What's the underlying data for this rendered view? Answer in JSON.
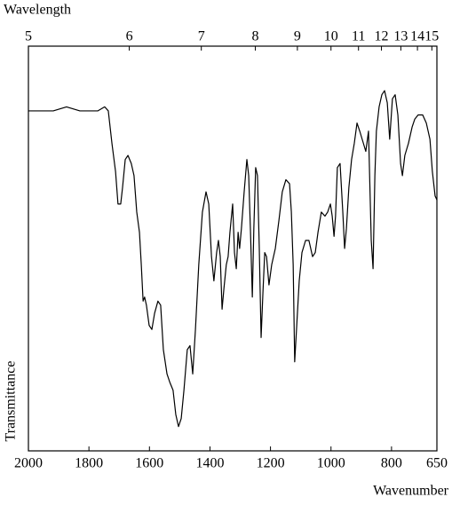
{
  "chart_data": {
    "type": "line",
    "x2label": "Wavelength",
    "xlabel": "Wavenumber",
    "ylabel": "Transmittance",
    "xlim": [
      2000,
      650
    ],
    "ylim": [
      0,
      100
    ],
    "xticks": [
      2000,
      1800,
      1600,
      1400,
      1200,
      1000,
      800,
      650
    ],
    "x2ticks": [
      {
        "value": 2000,
        "label": "5"
      },
      {
        "value": 1666.7,
        "label": "6"
      },
      {
        "value": 1428.6,
        "label": "7"
      },
      {
        "value": 1250,
        "label": "8"
      },
      {
        "value": 1111.1,
        "label": "9"
      },
      {
        "value": 1000,
        "label": "10"
      },
      {
        "value": 909.1,
        "label": "11"
      },
      {
        "value": 833.3,
        "label": "12"
      },
      {
        "value": 769.2,
        "label": "13"
      },
      {
        "value": 714.3,
        "label": "14"
      },
      {
        "value": 666.7,
        "label": "15"
      }
    ],
    "color": "#000000",
    "x": [
      2000,
      1918,
      1874,
      1830,
      1771,
      1748,
      1736,
      1724,
      1712,
      1704,
      1695,
      1689,
      1680,
      1671,
      1660,
      1651,
      1642,
      1633,
      1627,
      1621,
      1616,
      1610,
      1601,
      1592,
      1583,
      1572,
      1563,
      1554,
      1542,
      1533,
      1522,
      1513,
      1504,
      1495,
      1486,
      1475,
      1466,
      1457,
      1448,
      1437,
      1425,
      1413,
      1404,
      1395,
      1387,
      1378,
      1372,
      1366,
      1360,
      1354,
      1346,
      1340,
      1334,
      1325,
      1319,
      1313,
      1307,
      1302,
      1296,
      1287,
      1278,
      1272,
      1266,
      1260,
      1255,
      1249,
      1243,
      1237,
      1231,
      1225,
      1219,
      1213,
      1205,
      1196,
      1184,
      1172,
      1161,
      1149,
      1137,
      1131,
      1125,
      1120,
      1114,
      1105,
      1096,
      1084,
      1073,
      1061,
      1052,
      1043,
      1032,
      1020,
      1011,
      1002,
      996,
      990,
      985,
      979,
      970,
      961,
      955,
      949,
      941,
      932,
      923,
      914,
      905,
      897,
      885,
      876,
      867,
      861,
      855,
      850,
      841,
      832,
      823,
      814,
      806,
      797,
      788,
      779,
      770,
      764,
      756,
      744,
      732,
      723,
      712,
      697,
      685,
      673,
      665,
      656,
      650
    ],
    "values": [
      84,
      84,
      85,
      84,
      84,
      85,
      84,
      76,
      69,
      61,
      61,
      65,
      72,
      73,
      71,
      68,
      59,
      54,
      46,
      37,
      38,
      36,
      31,
      30,
      34,
      37,
      36,
      25,
      19,
      17,
      15,
      9,
      6,
      8,
      15,
      25,
      26,
      19,
      30,
      46,
      59,
      64,
      61,
      48,
      42,
      49,
      52,
      48,
      35,
      40,
      46,
      48,
      54,
      61,
      49,
      45,
      54,
      50,
      55,
      64,
      72,
      68,
      54,
      38,
      55,
      70,
      68,
      50,
      28,
      39,
      49,
      48,
      41,
      46,
      50,
      57,
      64,
      67,
      66,
      59,
      46,
      22,
      30,
      42,
      49,
      52,
      52,
      48,
      49,
      54,
      59,
      58,
      59,
      61,
      58,
      53,
      58,
      70,
      71,
      59,
      50,
      55,
      65,
      72,
      76,
      81,
      79,
      77,
      74,
      79,
      52,
      45,
      68,
      79,
      85,
      88,
      89,
      86,
      77,
      87,
      88,
      83,
      71,
      68,
      73,
      76,
      80,
      82,
      83,
      83,
      81,
      77,
      69,
      63,
      62
    ]
  }
}
